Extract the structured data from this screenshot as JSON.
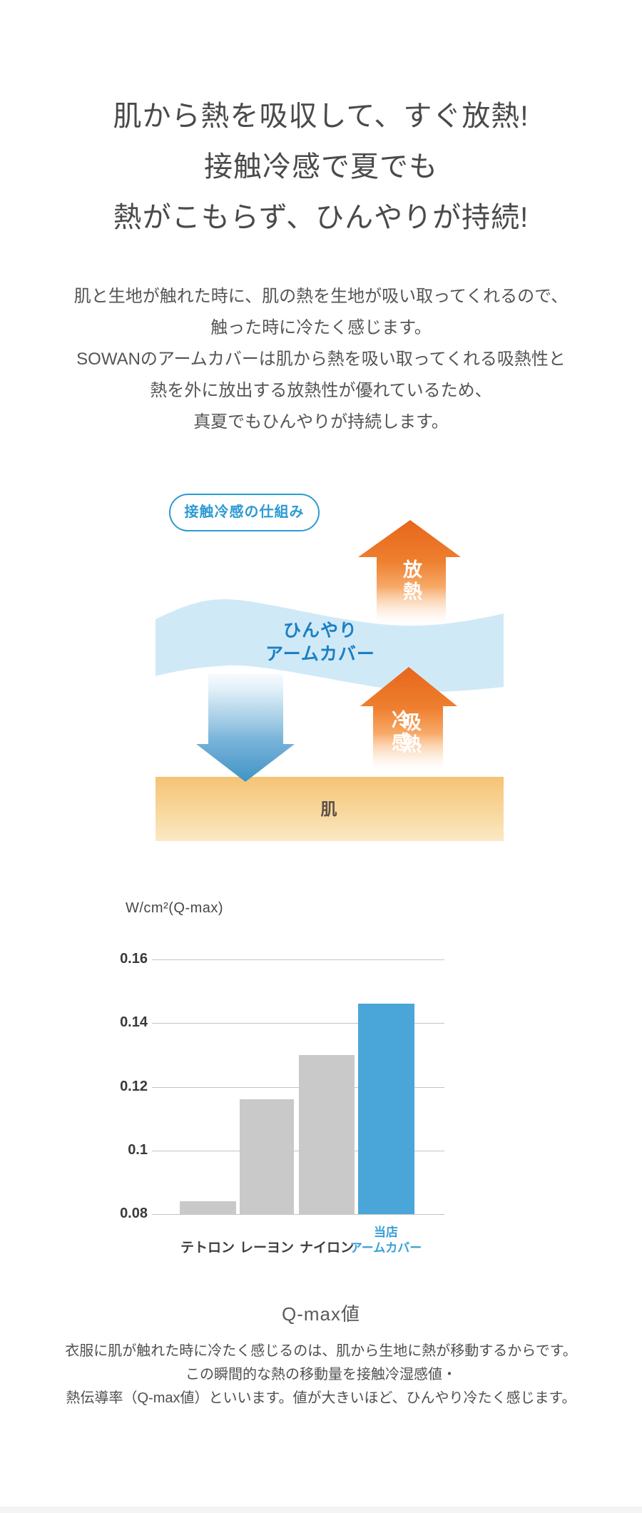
{
  "headline": {
    "lines": [
      "肌から熱を吸収して、すぐ放熱!",
      "接触冷感で夏でも",
      "熱がこもらず、ひんやりが持続!"
    ]
  },
  "intro": {
    "lines": [
      "肌と生地が触れた時に、肌の熱を生地が吸い取ってくれるので、",
      "触った時に冷たく感じます。",
      "SOWANのアームカバーは肌から熱を吸い取ってくれる吸熱性と",
      "熱を外に放出する放熱性が優れているため、",
      "真夏でもひんやりが持続します。"
    ]
  },
  "diagram": {
    "badge_label": "接触冷感の仕組み",
    "heat_release_label": "放熱",
    "cool_feel_label": "冷感",
    "heat_absorb_label": "吸熱",
    "cover_label_lines": [
      "ひんやり",
      "アームカバー"
    ],
    "skin_label": "肌",
    "colors": {
      "badge_blue": "#2d9ad2",
      "cover_text_blue": "#1c80c3",
      "orange_arrow": "#ec6d1f",
      "blue_arrow": "#4094c5",
      "wave_band": "#d0e9f7",
      "skin_top": "#f5c376",
      "skin_bottom": "#fbe9c4"
    }
  },
  "chart_title": "Q-max値",
  "footer": {
    "lines": [
      "衣服に肌が触れた時に冷たく感じるのは、肌から生地に熱が移動するからです。",
      "この瞬間的な熱の移動量を接触冷湿感値・",
      "熱伝導率（Q-max値）といいます。値が大きいほど、ひんやり冷たく感じます。"
    ]
  },
  "chart_data": {
    "type": "bar",
    "title": "Q-max値",
    "ylabel": "W/cm²(Q-max)",
    "categories": [
      "テトロン",
      "レーヨン",
      "ナイロン",
      "当店アームカバー"
    ],
    "category_label_lines": [
      [
        "テトロン"
      ],
      [
        "レーヨン"
      ],
      [
        "ナイロン"
      ],
      [
        "当店",
        "アームカバー"
      ]
    ],
    "values": [
      0.084,
      0.116,
      0.13,
      0.146
    ],
    "bar_colors": [
      "#c9c9c9",
      "#c9c9c9",
      "#c9c9c9",
      "#4aa6d8"
    ],
    "category_colors": [
      "#3f3f3f",
      "#3f3f3f",
      "#3f3f3f",
      "#3aa0d8"
    ],
    "yticks": [
      {
        "value": 0.16,
        "label": "0.16"
      },
      {
        "value": 0.14,
        "label": "0.14"
      },
      {
        "value": 0.12,
        "label": "0.12"
      },
      {
        "value": 0.1,
        "label": "0.1"
      },
      {
        "value": 0.08,
        "label": "0.08"
      }
    ],
    "ylim": [
      0.08,
      0.172
    ],
    "grid": true,
    "legend_position": "none",
    "highlight_index": 3
  }
}
